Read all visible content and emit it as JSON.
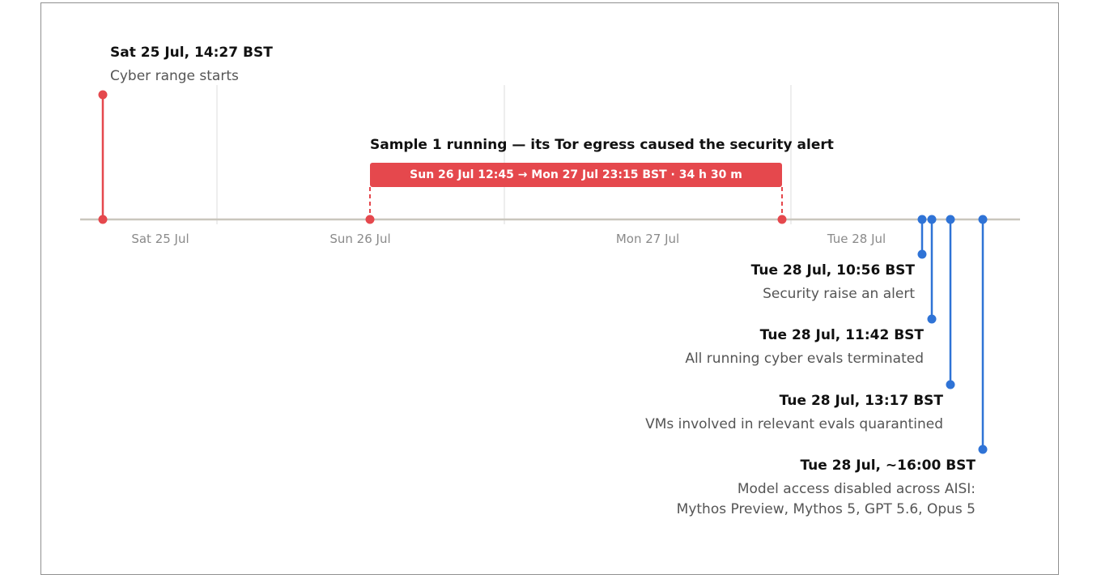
{
  "colors": {
    "accent_red": "#e5484d",
    "accent_blue": "#2f73d6",
    "axis": "#c9c6bd",
    "grid": "#e3e3e3",
    "tick_text": "#8a8a8a",
    "event_text": "#111111",
    "desc_text": "#555555"
  },
  "axis": {
    "ticks": [
      "Sat 25 Jul",
      "Sun 26 Jul",
      "Mon 27 Jul",
      "Tue 28 Jul"
    ]
  },
  "events": [
    {
      "id": "range-start",
      "time": "Sat 25 Jul, 14:27 BST",
      "description": "Cyber range starts",
      "color": "red"
    },
    {
      "id": "alert",
      "time": "Tue 28 Jul, 10:56 BST",
      "description": "Security raise an alert",
      "color": "blue"
    },
    {
      "id": "terminated",
      "time": "Tue 28 Jul, 11:42 BST",
      "description": "All running cyber evals terminated",
      "color": "blue"
    },
    {
      "id": "quarantined",
      "time": "Tue 28 Jul, 13:17 BST",
      "description": "VMs involved in relevant evals quarantined",
      "color": "blue"
    },
    {
      "id": "access-disabled",
      "time": "Tue 28 Jul, ~16:00 BST",
      "description": "Model access disabled across AISI:",
      "description_line2": "Mythos Preview, Mythos 5, GPT 5.6, Opus 5",
      "color": "blue"
    }
  ],
  "span": {
    "title": "Sample 1 running — its Tor egress caused the security alert",
    "label": "Sun 26 Jul 12:45 → Mon 27 Jul 23:15 BST · 34 h 30 m",
    "color": "red"
  }
}
